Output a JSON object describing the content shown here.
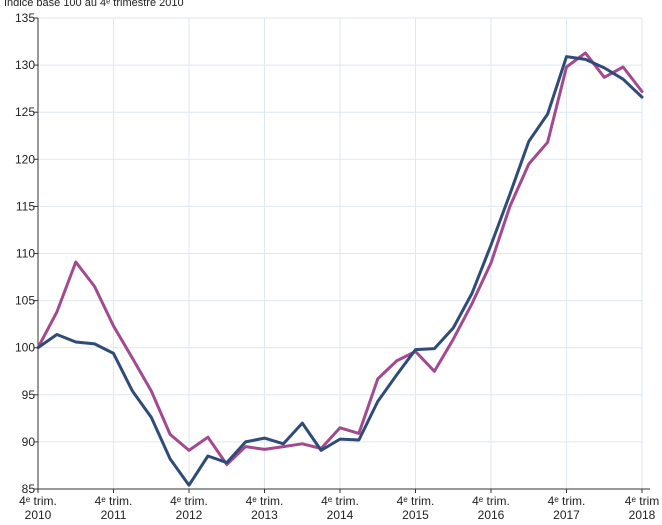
{
  "chart_data": {
    "type": "line",
    "title": "",
    "subtitle": "Indice base 100 au 4ᵉ trimestre 2010",
    "xlabel": "",
    "ylabel": "",
    "ylim": [
      85,
      135
    ],
    "y_ticks": [
      85,
      90,
      95,
      100,
      105,
      110,
      115,
      120,
      125,
      130,
      135
    ],
    "x_tick_labels": [
      {
        "line1": "4ᵉ trim.",
        "line2": "2010"
      },
      {
        "line1": "4ᵉ trim.",
        "line2": "2011"
      },
      {
        "line1": "4ᵉ trim.",
        "line2": "2012"
      },
      {
        "line1": "4ᵉ trim.",
        "line2": "2013"
      },
      {
        "line1": "4ᵉ trim.",
        "line2": "2014"
      },
      {
        "line1": "4ᵉ trim.",
        "line2": "2015"
      },
      {
        "line1": "4ᵉ trim.",
        "line2": "2016"
      },
      {
        "line1": "4ᵉ trim.",
        "line2": "2017"
      },
      {
        "line1": "4ᵉ trim",
        "line2": "2018"
      }
    ],
    "grid": true,
    "series": [
      {
        "color": "#a3498f",
        "values": [
          100.0,
          103.8,
          109.1,
          106.5,
          102.3,
          98.9,
          95.4,
          90.8,
          89.1,
          90.5,
          87.6,
          89.5,
          89.2,
          89.5,
          89.8,
          89.3,
          91.5,
          90.9,
          96.7,
          98.6,
          99.6,
          97.5,
          100.9,
          104.7,
          109.0,
          115.0,
          119.5,
          121.8,
          129.8,
          131.3,
          128.7,
          129.8,
          127.2
        ]
      },
      {
        "color": "#2f4b78",
        "values": [
          100.0,
          101.4,
          100.6,
          100.4,
          99.4,
          95.4,
          92.6,
          88.2,
          85.4,
          88.5,
          87.8,
          90.0,
          90.4,
          89.8,
          92.0,
          89.1,
          90.3,
          90.2,
          94.3,
          97.1,
          99.8,
          99.9,
          102.1,
          105.8,
          110.9,
          116.3,
          121.9,
          124.8,
          130.9,
          130.6,
          129.7,
          128.5,
          126.6
        ]
      }
    ]
  }
}
